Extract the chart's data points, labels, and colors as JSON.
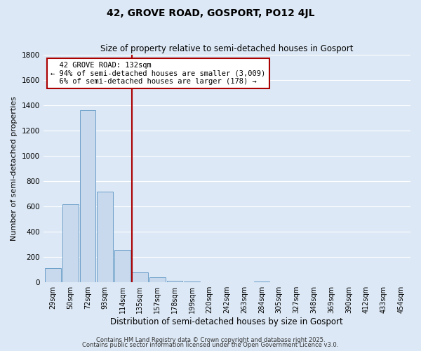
{
  "title": "42, GROVE ROAD, GOSPORT, PO12 4JL",
  "subtitle": "Size of property relative to semi-detached houses in Gosport",
  "xlabel": "Distribution of semi-detached houses by size in Gosport",
  "ylabel": "Number of semi-detached properties",
  "footer1": "Contains HM Land Registry data © Crown copyright and database right 2025.",
  "footer2": "Contains public sector information licensed under the Open Government Licence v3.0.",
  "annotation_line1": "42 GROVE ROAD: 132sqm",
  "annotation_line2": "← 94% of semi-detached houses are smaller (3,009)",
  "annotation_line3": "6% of semi-detached houses are larger (178) →",
  "bin_labels": [
    "29sqm",
    "50sqm",
    "72sqm",
    "93sqm",
    "114sqm",
    "135sqm",
    "157sqm",
    "178sqm",
    "199sqm",
    "220sqm",
    "242sqm",
    "263sqm",
    "284sqm",
    "305sqm",
    "327sqm",
    "348sqm",
    "369sqm",
    "390sqm",
    "412sqm",
    "433sqm",
    "454sqm"
  ],
  "bar_values": [
    110,
    615,
    1360,
    720,
    255,
    80,
    40,
    10,
    5,
    0,
    0,
    0,
    5,
    0,
    0,
    0,
    0,
    0,
    0,
    0,
    0
  ],
  "marker_index": 5,
  "ylim": [
    0,
    1800
  ],
  "yticks": [
    0,
    200,
    400,
    600,
    800,
    1000,
    1200,
    1400,
    1600,
    1800
  ],
  "bar_color": "#c8d9ee",
  "bar_edge_color": "#6b9ec8",
  "marker_color": "#aa0000",
  "bg_color": "#dce8f5",
  "grid_color": "#ffffff",
  "annotation_box_color": "#ffffff",
  "annotation_box_edge": "#aa0000",
  "title_fontsize": 10,
  "subtitle_fontsize": 8.5,
  "ylabel_fontsize": 8,
  "xlabel_fontsize": 8.5,
  "tick_fontsize": 7,
  "footer_fontsize": 6,
  "annotation_fontsize": 7.5
}
